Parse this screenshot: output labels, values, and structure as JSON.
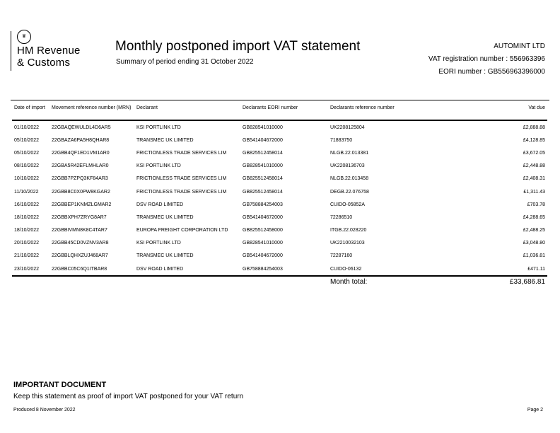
{
  "logo": {
    "line1": "HM Revenue",
    "line2": "& Customs"
  },
  "header": {
    "title": "Monthly postponed import VAT statement",
    "subtitle": "Summary of period ending 31 October 2022",
    "company": "AUTOMINT LTD",
    "vat_registration": "VAT registration number : 556963396",
    "eori": "EORI number : GB556963396000"
  },
  "table": {
    "columns": [
      "Date of import",
      "Movement reference number (MRN)",
      "Declarant",
      "Declarants EORI number",
      "Declarants reference number",
      "Vat due"
    ],
    "rows": [
      [
        "01/10/2022",
        "22GBAQEWULDL4D6AR5",
        "KSI PORTLINK LTD",
        "GB828541010000",
        "UK2208125804",
        "£2,888.88"
      ],
      [
        "05/10/2022",
        "22GBAZA6PA5H8QHAR8",
        "TRANSMEC UK LIMITED",
        "GB541404672000",
        "71883750",
        "£4,128.85"
      ],
      [
        "05/10/2022",
        "22GBB4QF1ED1VM1AR0",
        "FRICTIONLESS TRADE SERVICES  LIM",
        "GB825512458014",
        "NLGB.22.013381",
        "£3,672.05"
      ],
      [
        "08/10/2022",
        "22GBA5R42EFLMHLAR0",
        "KSI PORTLINK LTD",
        "GB828541010000",
        "UK2208136703",
        "£2,448.88"
      ],
      [
        "10/10/2022",
        "22GBB7PZPQ3KF84AR3",
        "FRICTIONLESS TRADE SERVICES  LIM",
        "GB825512458014",
        "NLGB.22.013458",
        "£2,408.31"
      ],
      [
        "11/10/2022",
        "22GBB8C0X0PW8KGAR2",
        "FRICTIONLESS TRADE SERVICES  LIM",
        "GB825512458014",
        "DEGB.22.076758",
        "£1,311.43"
      ],
      [
        "16/10/2022",
        "22GBBEP1KNMZLGMAR2",
        "DSV ROAD LIMITED",
        "GB758884254003",
        "CUIDO-05852A",
        "£703.78"
      ],
      [
        "18/10/2022",
        "22GBBXPH7ZRYG8AR7",
        "TRANSMEC UK LIMITED",
        "GB541404672000",
        "72286510",
        "£4,288.65"
      ],
      [
        "18/10/2022",
        "22GBBIVMN8K8C4TAR7",
        "EUROPA FREIGHT CORPORATION LTD",
        "GB825512458000",
        "ITGB.22.028220",
        "£2,488.25"
      ],
      [
        "20/10/2022",
        "22GBB45CD0VZNV3AR8",
        "KSI PORTLINK LTD",
        "GB828541010000",
        "UK2210032103",
        "£3,048.80"
      ],
      [
        "21/10/2022",
        "22GBBLQHXZUJ468AR7",
        "TRANSMEC UK LIMITED",
        "GB541404672000",
        "72287160",
        "£1,036.81"
      ],
      [
        "23/10/2022",
        "22GBBC05C6Q1ITBAR8",
        "DSV ROAD LIMITED",
        "GB758884254003",
        "CUIDO-06132",
        "£471.11"
      ]
    ],
    "total_label": "Month total:",
    "total_value": "£33,686.81"
  },
  "footer": {
    "important": "IMPORTANT DOCUMENT",
    "note": "Keep this statement as proof of import VAT postponed for your VAT return",
    "produced": "Produced 8 November 2022",
    "page": "Page 2"
  }
}
